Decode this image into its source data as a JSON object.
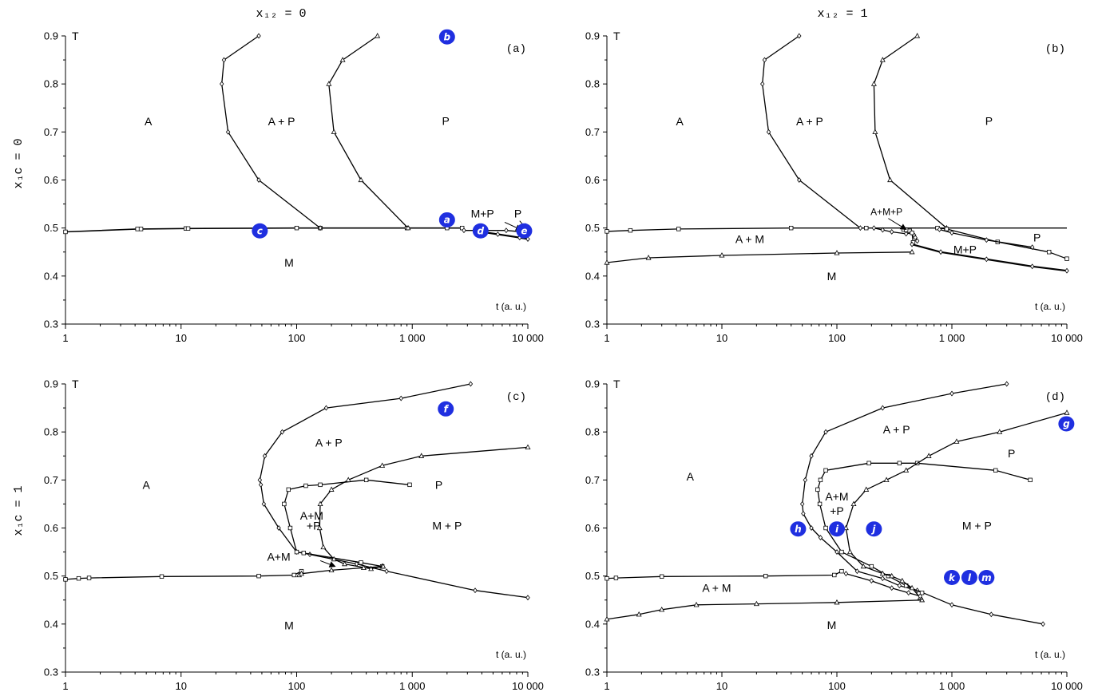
{
  "figure": {
    "column_titles": [
      "x₁₂ = 0",
      "x₁₂ = 1"
    ],
    "row_titles": [
      "x₁c = 0",
      "x₁c = 1"
    ],
    "accent_color": "#1f2fe0"
  },
  "chart_data": [
    {
      "panel": "(a)",
      "type": "line",
      "x_scale": "log",
      "xlim": [
        1,
        10000
      ],
      "ylim": [
        0.3,
        0.9
      ],
      "xticks": [
        "1",
        "10",
        "100",
        "1 000",
        "10 000"
      ],
      "yticks": [
        "0.3",
        "0.4",
        "0.5",
        "0.6",
        "0.7",
        "0.8",
        "0.9"
      ],
      "ylabel": "T",
      "xlabel": "t (a. u.)",
      "regions": [
        {
          "text": "A",
          "x": 5.2,
          "y": 0.722
        },
        {
          "text": "A + P",
          "x": 74,
          "y": 0.722
        },
        {
          "text": "P",
          "x": 1950,
          "y": 0.723
        },
        {
          "text": "M",
          "x": 86,
          "y": 0.428
        },
        {
          "text": "M+P",
          "x": 4050,
          "y": 0.53
        },
        {
          "text": "P",
          "x": 8200,
          "y": 0.53
        }
      ],
      "arrows": [
        {
          "from": [
            6300,
            0.512
          ],
          "to": [
            8800,
            0.496
          ]
        },
        {
          "from": [
            8500,
            0.515
          ],
          "to": [
            9800,
            0.497
          ]
        }
      ],
      "series": [
        {
          "marker": "square",
          "x": [
            1,
            4.2,
            4.5,
            11,
            11.5,
            100,
            160,
            900,
            2000,
            2700
          ],
          "y": [
            0.492,
            0.498,
            0.498,
            0.499,
            0.499,
            0.5,
            0.5,
            0.5,
            0.5,
            0.5
          ],
          "width": 1.6
        },
        {
          "marker": "diamond",
          "x": [
            47,
            23.5,
            22.5,
            25.5,
            47,
            160
          ],
          "y": [
            0.9,
            0.85,
            0.8,
            0.7,
            0.6,
            0.5
          ]
        },
        {
          "marker": "triangle",
          "x": [
            500,
            250,
            190,
            210,
            360,
            920
          ],
          "y": [
            0.9,
            0.85,
            0.8,
            0.7,
            0.6,
            0.5
          ]
        },
        {
          "marker": "diamond",
          "x": [
            2800,
            4000,
            6500,
            9000,
            10000
          ],
          "y": [
            0.495,
            0.495,
            0.495,
            0.492,
            0.49
          ],
          "width": 1.4
        },
        {
          "marker": "diamond",
          "x": [
            3500,
            5500,
            8500,
            10000
          ],
          "y": [
            0.494,
            0.487,
            0.48,
            0.477
          ],
          "width": 2.2
        }
      ],
      "badges": [
        {
          "letter": "b",
          "x": 2000,
          "y": 0.898
        },
        {
          "letter": "a",
          "x": 2000,
          "y": 0.517
        },
        {
          "letter": "c",
          "x": 48,
          "y": 0.494
        },
        {
          "letter": "d",
          "x": 3900,
          "y": 0.494
        },
        {
          "letter": "e",
          "x": 9300,
          "y": 0.494
        }
      ]
    },
    {
      "panel": "(b)",
      "type": "line",
      "x_scale": "log",
      "xlim": [
        1,
        10000
      ],
      "ylim": [
        0.3,
        0.9
      ],
      "xticks": [
        "1",
        "10",
        "100",
        "1 000",
        "10 000"
      ],
      "yticks": [
        "0.3",
        "0.4",
        "0.5",
        "0.6",
        "0.7",
        "0.8",
        "0.9"
      ],
      "ylabel": "T",
      "xlabel": "t (a. u.)",
      "regions": [
        {
          "text": "A",
          "x": 4.3,
          "y": 0.722
        },
        {
          "text": "A  +  P",
          "x": 58,
          "y": 0.722
        },
        {
          "text": "P",
          "x": 2100,
          "y": 0.723
        },
        {
          "text": "A + M",
          "x": 17.5,
          "y": 0.477
        },
        {
          "text": "M",
          "x": 90,
          "y": 0.4
        },
        {
          "text": "M+P",
          "x": 1300,
          "y": 0.455
        },
        {
          "text": "P",
          "x": 5500,
          "y": 0.48
        },
        {
          "text": "A+M+P",
          "x": 270,
          "y": 0.535
        }
      ],
      "arrows": [
        {
          "from": [
            280,
            0.52
          ],
          "to": [
            400,
            0.497
          ]
        }
      ],
      "series": [
        {
          "marker": "none",
          "x": [
            160,
            10000
          ],
          "y": [
            0.5,
            0.5
          ]
        },
        {
          "marker": "square",
          "x": [
            1,
            1.6,
            4.2,
            40,
            180
          ],
          "y": [
            0.493,
            0.495,
            0.498,
            0.5,
            0.5
          ]
        },
        {
          "marker": "diamond",
          "x": [
            47,
            23.5,
            22.5,
            25.5,
            47,
            160
          ],
          "y": [
            0.9,
            0.85,
            0.8,
            0.7,
            0.6,
            0.5
          ]
        },
        {
          "marker": "triangle",
          "x": [
            500,
            250,
            210,
            215,
            290,
            900
          ],
          "y": [
            0.9,
            0.85,
            0.8,
            0.7,
            0.6,
            0.5
          ]
        },
        {
          "marker": "triangle",
          "x": [
            1,
            2.3,
            10,
            100,
            450
          ],
          "y": [
            0.428,
            0.438,
            0.443,
            0.448,
            0.45
          ]
        },
        {
          "marker": "diamond",
          "x": [
            210,
            250,
            300,
            400,
            450,
            470,
            480,
            500
          ],
          "y": [
            0.5,
            0.496,
            0.492,
            0.488,
            0.49,
            0.485,
            0.48,
            0.473
          ]
        },
        {
          "marker": "square",
          "x": [
            380,
            400,
            430,
            450,
            460
          ],
          "y": [
            0.497,
            0.496,
            0.494,
            0.49,
            0.47
          ]
        },
        {
          "marker": "diamond",
          "x": [
            450,
            800,
            2000,
            5000,
            10000
          ],
          "y": [
            0.466,
            0.45,
            0.435,
            0.42,
            0.411
          ],
          "width": 2.2
        },
        {
          "marker": "square",
          "x": [
            750,
            900,
            2500,
            7000,
            10000
          ],
          "y": [
            0.5,
            0.498,
            0.471,
            0.45,
            0.436
          ]
        },
        {
          "marker": "diamond",
          "x": [
            780,
            1000,
            2000,
            5000
          ],
          "y": [
            0.497,
            0.49,
            0.475,
            0.46
          ]
        }
      ],
      "badges": []
    },
    {
      "panel": "(c)",
      "type": "line",
      "x_scale": "log",
      "xlim": [
        1,
        10000
      ],
      "ylim": [
        0.3,
        0.9
      ],
      "xticks": [
        "1",
        "10",
        "100",
        "1 000",
        "10 000"
      ],
      "yticks": [
        "0.3",
        "0.4",
        "0.5",
        "0.6",
        "0.7",
        "0.8",
        "0.9"
      ],
      "ylabel": "T",
      "xlabel": "t (a. u.)",
      "regions": [
        {
          "text": "A",
          "x": 5,
          "y": 0.69
        },
        {
          "text": "A + P",
          "x": 190,
          "y": 0.778
        },
        {
          "text": "P",
          "x": 1700,
          "y": 0.69
        },
        {
          "text": "A+M",
          "x": 135,
          "y": 0.626
        },
        {
          "text": "+P",
          "x": 140,
          "y": 0.605
        },
        {
          "text": "M + P",
          "x": 2000,
          "y": 0.605
        },
        {
          "text": "A+M",
          "x": 70,
          "y": 0.54
        },
        {
          "text": "M",
          "x": 86,
          "y": 0.397
        }
      ],
      "arrows": [
        {
          "from": [
            160,
            0.532
          ],
          "to": [
            215,
            0.52
          ]
        }
      ],
      "series": [
        {
          "marker": "square",
          "x": [
            1,
            1.3,
            1.6,
            6.8,
            47,
            95,
            110
          ],
          "y": [
            0.493,
            0.495,
            0.496,
            0.499,
            0.5,
            0.502,
            0.51
          ]
        },
        {
          "marker": "diamond",
          "x": [
            3200,
            800,
            180,
            75,
            53,
            48,
            49,
            52,
            70,
            100,
            130,
            330,
            600,
            3500,
            10000
          ],
          "y": [
            0.9,
            0.87,
            0.85,
            0.8,
            0.75,
            0.7,
            0.69,
            0.65,
            0.6,
            0.55,
            0.545,
            0.525,
            0.51,
            0.47,
            0.455
          ]
        },
        {
          "marker": "square",
          "x": [
            950,
            400,
            160,
            120,
            85,
            78,
            88,
            100,
            115,
            360,
            550
          ],
          "y": [
            0.69,
            0.7,
            0.69,
            0.688,
            0.68,
            0.65,
            0.6,
            0.55,
            0.548,
            0.528,
            0.52
          ]
        },
        {
          "marker": "triangle",
          "x": [
            10000,
            1200,
            550,
            280,
            200,
            160,
            158,
            170,
            210,
            260,
            440,
            550
          ],
          "y": [
            0.768,
            0.75,
            0.73,
            0.7,
            0.68,
            0.65,
            0.6,
            0.56,
            0.535,
            0.525,
            0.515,
            0.52
          ]
        },
        {
          "marker": "triangle",
          "x": [
            105,
            110,
            200,
            380,
            560
          ],
          "y": [
            0.502,
            0.505,
            0.512,
            0.517,
            0.52
          ]
        }
      ],
      "badges": [
        {
          "letter": "f",
          "x": 1950,
          "y": 0.848
        }
      ]
    },
    {
      "panel": "(d)",
      "type": "line",
      "x_scale": "log",
      "xlim": [
        1,
        10000
      ],
      "ylim": [
        0.3,
        0.9
      ],
      "xticks": [
        "1",
        "10",
        "100",
        "1 000",
        "10 000"
      ],
      "yticks": [
        "0.3",
        "0.4",
        "0.5",
        "0.6",
        "0.7",
        "0.8",
        "0.9"
      ],
      "ylabel": "T",
      "xlabel": "t (a. u.)",
      "regions": [
        {
          "text": "A",
          "x": 5.3,
          "y": 0.707
        },
        {
          "text": "A + P",
          "x": 330,
          "y": 0.805
        },
        {
          "text": "P",
          "x": 3300,
          "y": 0.755
        },
        {
          "text": "A+M",
          "x": 100,
          "y": 0.666
        },
        {
          "text": "+P",
          "x": 100,
          "y": 0.636
        },
        {
          "text": "M + P",
          "x": 1650,
          "y": 0.605
        },
        {
          "text": "A + M",
          "x": 9,
          "y": 0.475
        },
        {
          "text": "M",
          "x": 90,
          "y": 0.398
        }
      ],
      "arrows": [],
      "series": [
        {
          "marker": "triangle",
          "x": [
            1,
            1.9,
            3,
            6,
            20,
            100,
            550
          ],
          "y": [
            0.41,
            0.42,
            0.43,
            0.44,
            0.442,
            0.445,
            0.45
          ]
        },
        {
          "marker": "square",
          "x": [
            1,
            1.2,
            3,
            24,
            95,
            110
          ],
          "y": [
            0.495,
            0.496,
            0.499,
            0.5,
            0.502,
            0.51
          ]
        },
        {
          "marker": "diamond",
          "x": [
            3000,
            1000,
            250,
            80,
            60,
            53,
            50,
            51,
            60,
            72,
            100,
            150,
            250,
            350,
            500,
            1000,
            2200,
            6200
          ],
          "y": [
            0.9,
            0.88,
            0.85,
            0.8,
            0.75,
            0.7,
            0.65,
            0.63,
            0.6,
            0.58,
            0.55,
            0.51,
            0.495,
            0.48,
            0.47,
            0.44,
            0.42,
            0.4
          ]
        },
        {
          "marker": "square",
          "x": [
            4800,
            2400,
            500,
            350,
            190,
            80,
            72,
            68,
            71,
            80,
            110,
            200,
            280,
            400,
            550
          ],
          "y": [
            0.7,
            0.72,
            0.735,
            0.735,
            0.735,
            0.72,
            0.7,
            0.68,
            0.65,
            0.6,
            0.55,
            0.52,
            0.5,
            0.48,
            0.465
          ]
        },
        {
          "marker": "triangle",
          "x": [
            10000,
            2600,
            1100,
            630,
            400,
            270,
            180,
            140,
            120,
            130,
            170,
            250,
            300,
            370,
            450,
            530
          ],
          "y": [
            0.84,
            0.8,
            0.78,
            0.75,
            0.72,
            0.7,
            0.68,
            0.65,
            0.6,
            0.55,
            0.52,
            0.505,
            0.5,
            0.49,
            0.475,
            0.455
          ]
        },
        {
          "marker": "diamond",
          "x": [
            120,
            200,
            300,
            420,
            530
          ],
          "y": [
            0.505,
            0.49,
            0.475,
            0.465,
            0.458
          ]
        }
      ],
      "badges": [
        {
          "letter": "g",
          "x": 9900,
          "y": 0.817
        },
        {
          "letter": "h",
          "x": 46,
          "y": 0.598
        },
        {
          "letter": "i",
          "x": 100,
          "y": 0.598
        },
        {
          "letter": "j",
          "x": 210,
          "y": 0.598
        },
        {
          "letter": "k",
          "x": 1000,
          "y": 0.497
        },
        {
          "letter": "l",
          "x": 1420,
          "y": 0.497
        },
        {
          "letter": "m",
          "x": 2000,
          "y": 0.497
        }
      ]
    }
  ]
}
